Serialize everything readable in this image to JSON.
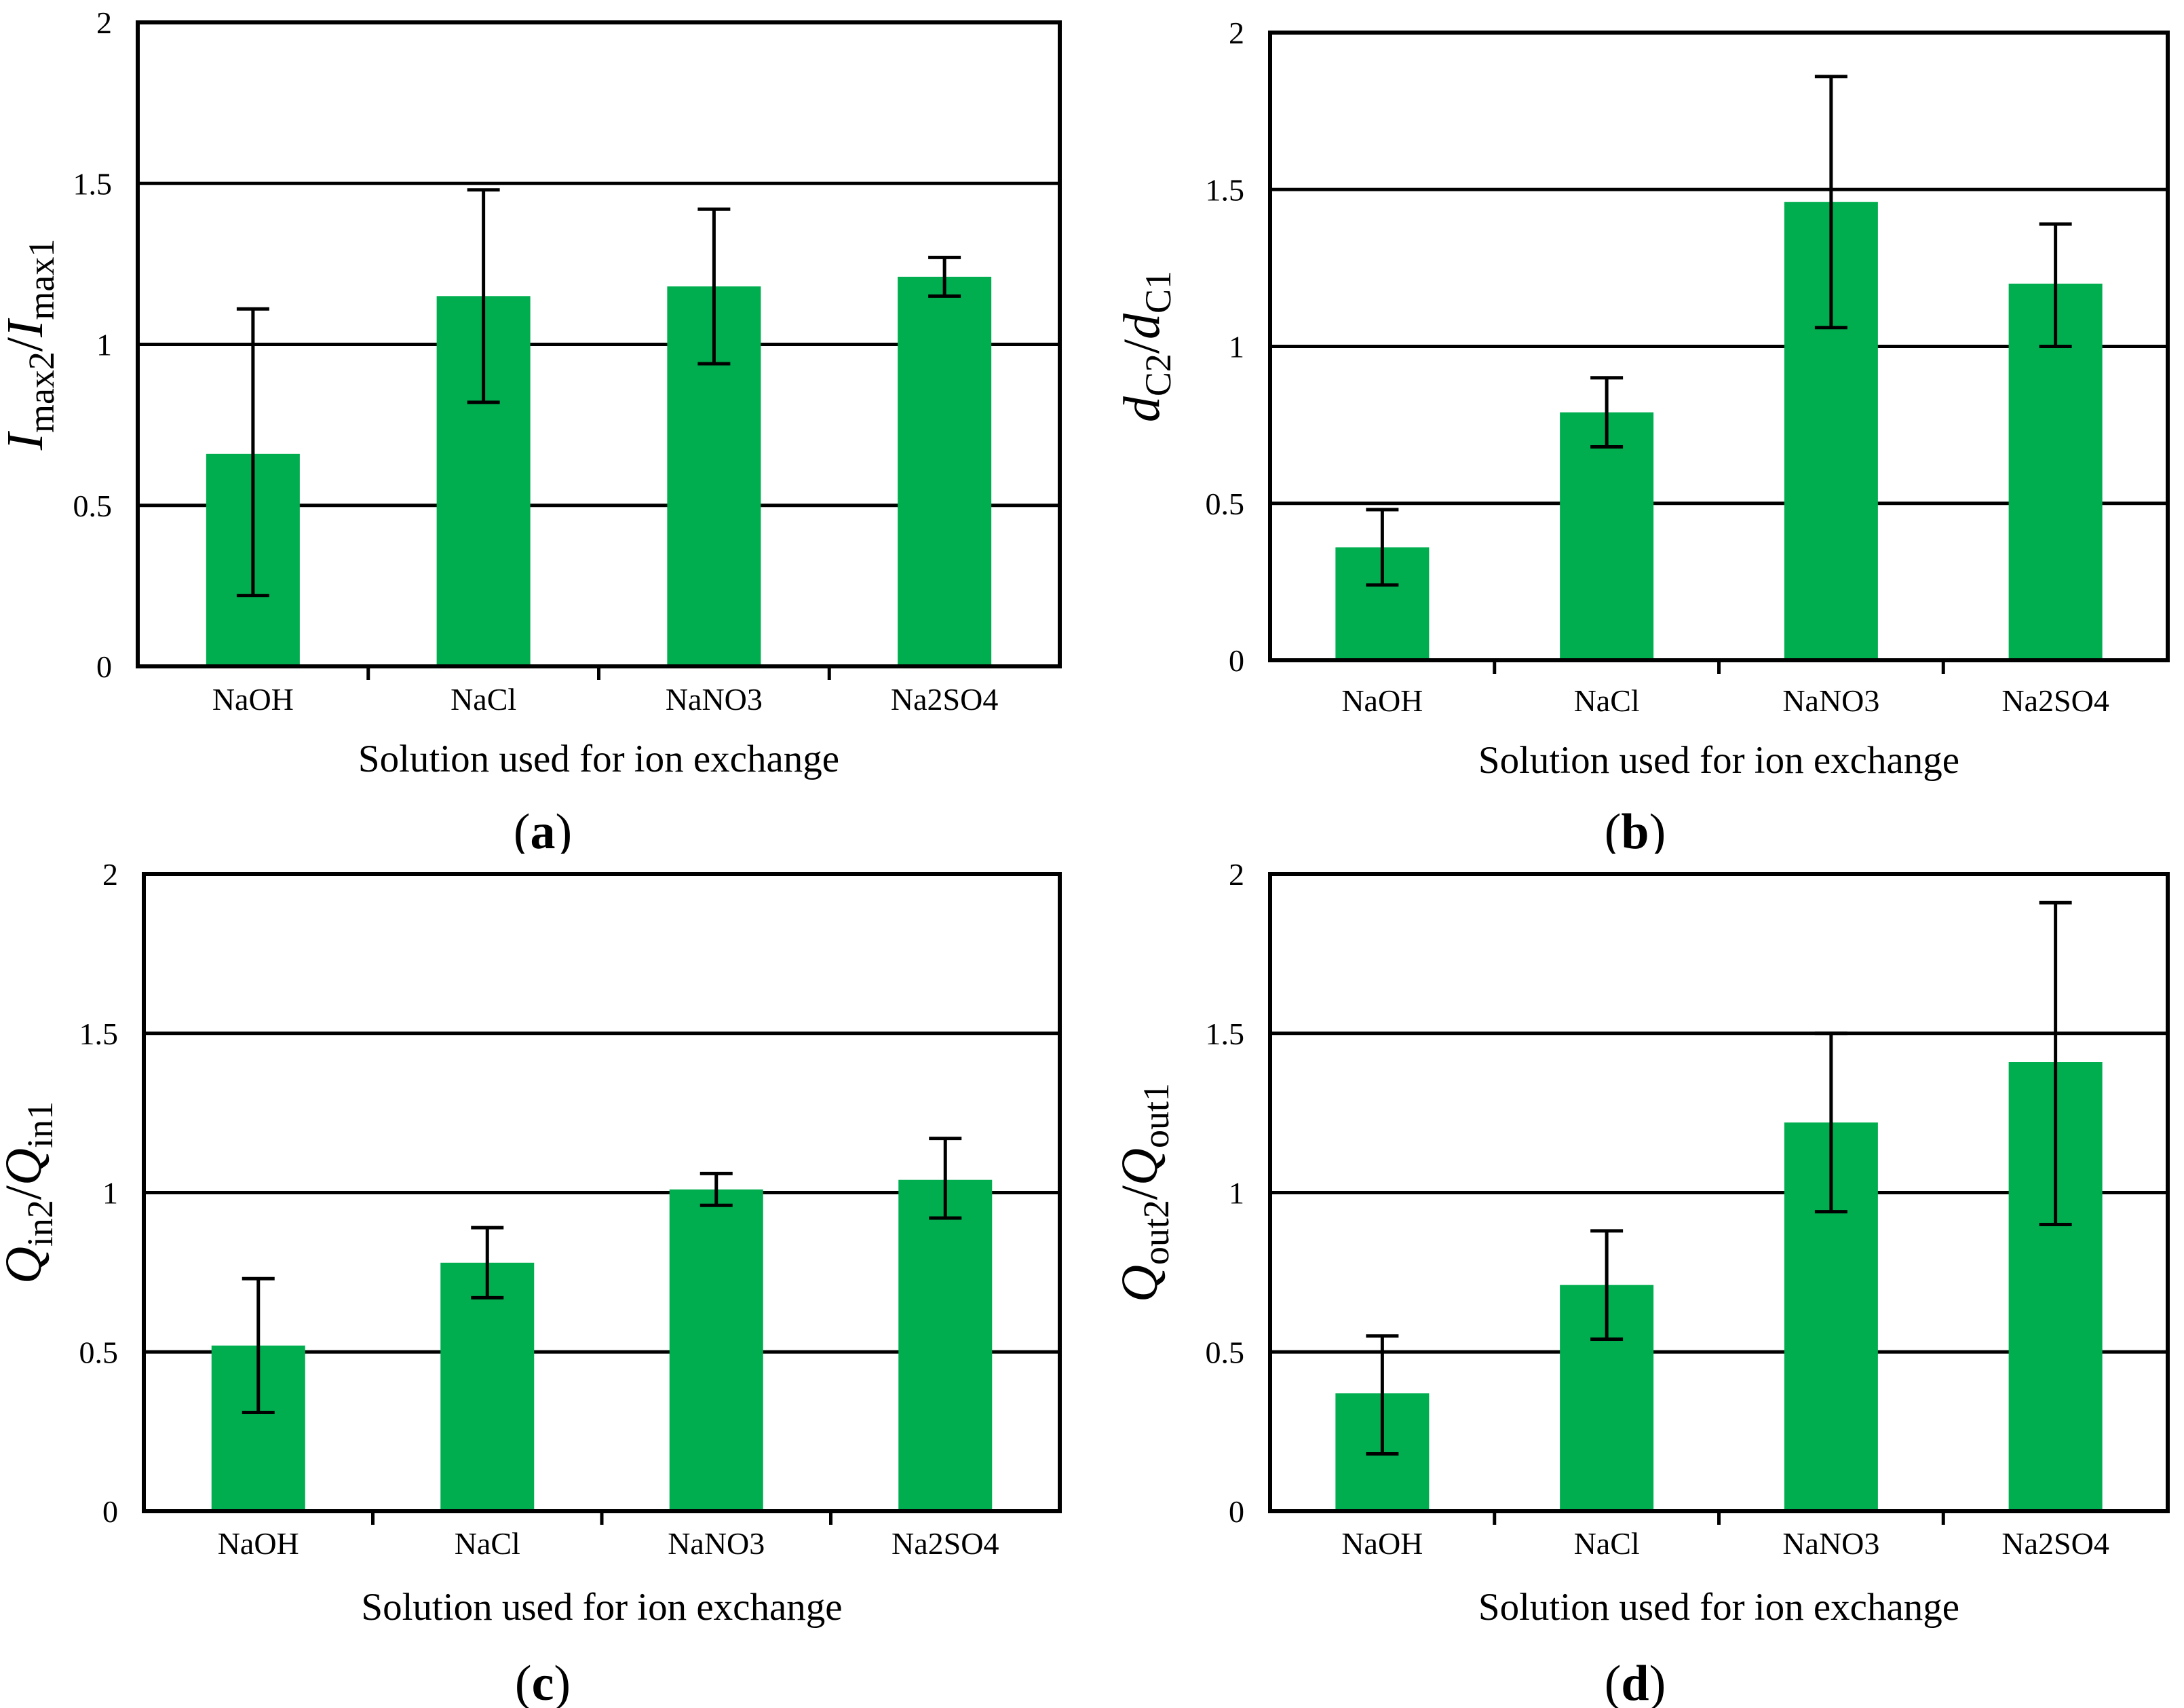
{
  "figure": {
    "background": "#ffffff",
    "bar_color": "#00AE4F",
    "axis_color": "#000000",
    "text_color": "#000000"
  },
  "chart_data": [
    {
      "id": "a",
      "type": "bar",
      "caption": "(a)",
      "categories": [
        "NaOH",
        "NaCl",
        "NaNO3",
        "Na2SO4"
      ],
      "values": [
        0.66,
        1.15,
        1.18,
        1.21
      ],
      "error_low": [
        0.22,
        0.82,
        0.94,
        1.15
      ],
      "error_high": [
        1.11,
        1.48,
        1.42,
        1.27
      ],
      "xlabel": "Solution used for ion exchange",
      "ylabel_plain": "Imax2/Imax1",
      "ylabel_parts": [
        {
          "text": "I",
          "style": "italic"
        },
        {
          "text": "max2",
          "style": "sub"
        },
        {
          "text": "/",
          "style": "normal"
        },
        {
          "text": "I",
          "style": "italic"
        },
        {
          "text": "max1",
          "style": "sub"
        }
      ],
      "ylim": [
        0,
        2
      ],
      "yticks": [
        "0",
        "0.5",
        "1",
        "1.5",
        "2"
      ],
      "grid": true,
      "legend": null
    },
    {
      "id": "b",
      "type": "bar",
      "caption": "(b)",
      "categories": [
        "NaOH",
        "NaCl",
        "NaNO3",
        "Na2SO4"
      ],
      "values": [
        0.36,
        0.79,
        1.46,
        1.2
      ],
      "error_low": [
        0.24,
        0.68,
        1.06,
        1.0
      ],
      "error_high": [
        0.48,
        0.9,
        1.86,
        1.39
      ],
      "xlabel": "Solution used for ion exchange",
      "ylabel_plain": "dC2/dC1",
      "ylabel_parts": [
        {
          "text": "d",
          "style": "italic"
        },
        {
          "text": "C2",
          "style": "sub"
        },
        {
          "text": "/",
          "style": "normal"
        },
        {
          "text": "d",
          "style": "italic"
        },
        {
          "text": "C1",
          "style": "sub"
        }
      ],
      "ylim": [
        0,
        2
      ],
      "yticks": [
        "0",
        "0.5",
        "1",
        "1.5",
        "2"
      ],
      "grid": true,
      "legend": null
    },
    {
      "id": "c",
      "type": "bar",
      "caption": "(c)",
      "categories": [
        "NaOH",
        "NaCl",
        "NaNO3",
        "Na2SO4"
      ],
      "values": [
        0.52,
        0.78,
        1.01,
        1.04
      ],
      "error_low": [
        0.31,
        0.67,
        0.96,
        0.92
      ],
      "error_high": [
        0.73,
        0.89,
        1.06,
        1.17
      ],
      "xlabel": "Solution used for ion exchange",
      "ylabel_plain": "Qin2/Qin1",
      "ylabel_parts": [
        {
          "text": "Q",
          "style": "italic"
        },
        {
          "text": "in2",
          "style": "sub"
        },
        {
          "text": "/",
          "style": "normal"
        },
        {
          "text": "Q",
          "style": "italic"
        },
        {
          "text": "in1",
          "style": "sub"
        }
      ],
      "ylim": [
        0,
        2
      ],
      "yticks": [
        "0",
        "0.5",
        "1",
        "1.5",
        "2"
      ],
      "grid": true,
      "legend": null
    },
    {
      "id": "d",
      "type": "bar",
      "caption": "(d)",
      "categories": [
        "NaOH",
        "NaCl",
        "NaNO3",
        "Na2SO4"
      ],
      "values": [
        0.37,
        0.71,
        1.22,
        1.41
      ],
      "error_low": [
        0.18,
        0.54,
        0.94,
        0.9
      ],
      "error_high": [
        0.55,
        0.88,
        1.5,
        1.91
      ],
      "xlabel": "Solution used for ion exchange",
      "ylabel_plain": "Qout2/Qout1",
      "ylabel_parts": [
        {
          "text": "Q",
          "style": "italic"
        },
        {
          "text": "out2",
          "style": "sub"
        },
        {
          "text": "/",
          "style": "normal"
        },
        {
          "text": "Q",
          "style": "italic"
        },
        {
          "text": "out1",
          "style": "sub"
        }
      ],
      "ylim": [
        0,
        2
      ],
      "yticks": [
        "0",
        "0.5",
        "1",
        "1.5",
        "2"
      ],
      "grid": true,
      "legend": null
    }
  ]
}
